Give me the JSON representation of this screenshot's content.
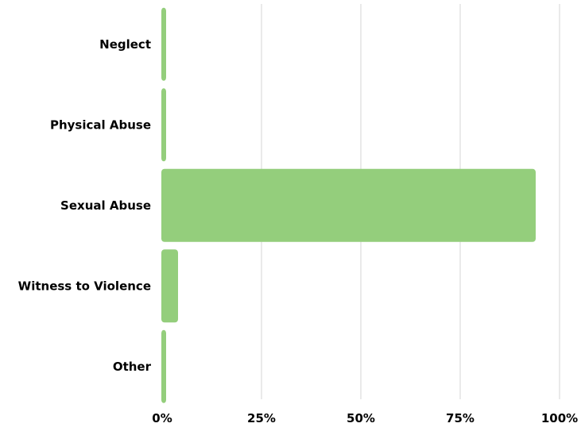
{
  "chart_data": {
    "type": "bar",
    "orientation": "horizontal",
    "categories": [
      "Neglect",
      "Physical Abuse",
      "Sexual Abuse",
      "Witness to Violence",
      "Other"
    ],
    "values": [
      1,
      1,
      94,
      4,
      1
    ],
    "unit": "%",
    "xlim": [
      0,
      100
    ],
    "x_ticks": [
      0,
      25,
      50,
      75,
      100
    ],
    "x_tick_labels": [
      "0%",
      "25%",
      "50%",
      "75%",
      "100%"
    ],
    "grid": "vertical",
    "legend": "none",
    "title": "",
    "xlabel": "",
    "ylabel": ""
  },
  "colors": {
    "bar": "#94ce7c",
    "grid": "#d4d4d4",
    "text": "#000000"
  }
}
